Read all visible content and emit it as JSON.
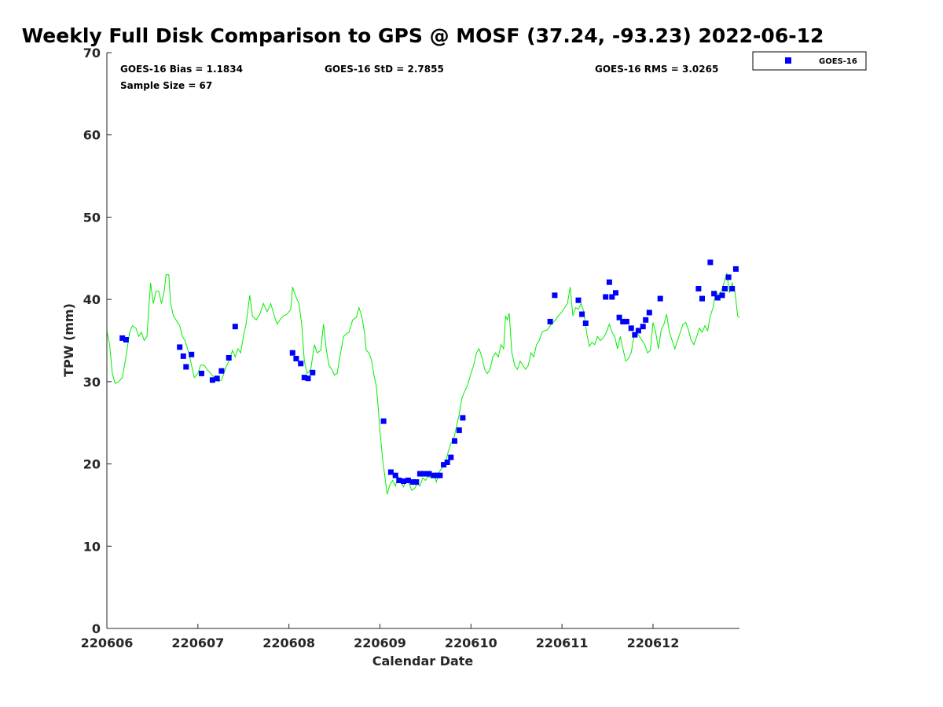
{
  "chart_data": {
    "type": "scatter",
    "title": "Weekly Full Disk Comparison to GPS @ MOSF (37.24, -93.23) 2022-06-12",
    "xlabel": "Calendar Date",
    "ylabel": "TPW (mm)",
    "xlim": [
      0,
      6.95
    ],
    "ylim": [
      0,
      70
    ],
    "x_ticks": [
      {
        "value": 0,
        "label": "220606"
      },
      {
        "value": 1,
        "label": "220607"
      },
      {
        "value": 2,
        "label": "220608"
      },
      {
        "value": 3,
        "label": "220609"
      },
      {
        "value": 4,
        "label": "220610"
      },
      {
        "value": 5,
        "label": "220611"
      },
      {
        "value": 6,
        "label": "220612"
      }
    ],
    "y_ticks": [
      0,
      10,
      20,
      30,
      40,
      50,
      60,
      70
    ],
    "grid": false,
    "legend_position": "top-right outside",
    "stats": {
      "bias": "GOES-16 Bias = 1.1834",
      "std": "GOES-16 StD = 2.7855",
      "rms": "GOES-16 RMS = 3.0265",
      "sample": "Sample Size = 67"
    },
    "series": [
      {
        "name": "GOES-16",
        "kind": "scatter",
        "marker": "square",
        "color": "#0000ff",
        "points": [
          [
            0.17,
            35.3
          ],
          [
            0.21,
            35.1
          ],
          [
            0.8,
            34.2
          ],
          [
            0.84,
            33.1
          ],
          [
            0.87,
            31.8
          ],
          [
            0.93,
            33.3
          ],
          [
            1.04,
            31.0
          ],
          [
            1.16,
            30.2
          ],
          [
            1.21,
            30.4
          ],
          [
            1.26,
            31.3
          ],
          [
            1.34,
            32.9
          ],
          [
            1.41,
            36.7
          ],
          [
            2.04,
            33.5
          ],
          [
            2.08,
            32.8
          ],
          [
            2.13,
            32.2
          ],
          [
            2.17,
            30.5
          ],
          [
            2.21,
            30.4
          ],
          [
            2.26,
            31.1
          ],
          [
            3.04,
            25.2
          ],
          [
            3.12,
            19.0
          ],
          [
            3.17,
            18.6
          ],
          [
            3.21,
            18.0
          ],
          [
            3.26,
            17.9
          ],
          [
            3.31,
            18.0
          ],
          [
            3.36,
            17.8
          ],
          [
            3.4,
            17.8
          ],
          [
            3.44,
            18.8
          ],
          [
            3.49,
            18.8
          ],
          [
            3.54,
            18.8
          ],
          [
            3.59,
            18.6
          ],
          [
            3.63,
            18.6
          ],
          [
            3.66,
            18.6
          ],
          [
            3.7,
            19.9
          ],
          [
            3.74,
            20.2
          ],
          [
            3.78,
            20.8
          ],
          [
            3.82,
            22.8
          ],
          [
            3.87,
            24.1
          ],
          [
            3.91,
            25.6
          ],
          [
            4.87,
            37.3
          ],
          [
            4.92,
            40.5
          ],
          [
            5.18,
            39.9
          ],
          [
            5.22,
            38.2
          ],
          [
            5.26,
            37.1
          ],
          [
            5.48,
            40.3
          ],
          [
            5.52,
            42.1
          ],
          [
            5.55,
            40.3
          ],
          [
            5.59,
            40.8
          ],
          [
            5.63,
            37.8
          ],
          [
            5.67,
            37.3
          ],
          [
            5.71,
            37.3
          ],
          [
            5.76,
            36.5
          ],
          [
            5.8,
            35.7
          ],
          [
            5.84,
            36.2
          ],
          [
            5.89,
            36.7
          ],
          [
            5.92,
            37.5
          ],
          [
            5.96,
            38.4
          ],
          [
            6.08,
            40.1
          ],
          [
            6.5,
            41.3
          ],
          [
            6.54,
            40.1
          ],
          [
            6.63,
            44.5
          ],
          [
            6.67,
            40.7
          ],
          [
            6.71,
            40.2
          ],
          [
            6.76,
            40.5
          ],
          [
            6.79,
            41.3
          ],
          [
            6.83,
            42.7
          ],
          [
            6.87,
            41.3
          ],
          [
            6.91,
            43.7
          ]
        ]
      },
      {
        "name": "GPS",
        "kind": "line",
        "color": "#00ee00",
        "points": [
          [
            0.0,
            36.2
          ],
          [
            0.03,
            34.5
          ],
          [
            0.06,
            31.0
          ],
          [
            0.09,
            29.8
          ],
          [
            0.13,
            30.0
          ],
          [
            0.17,
            30.5
          ],
          [
            0.21,
            33.0
          ],
          [
            0.25,
            36.0
          ],
          [
            0.28,
            36.8
          ],
          [
            0.32,
            36.5
          ],
          [
            0.35,
            35.5
          ],
          [
            0.38,
            36.0
          ],
          [
            0.41,
            35.0
          ],
          [
            0.44,
            35.5
          ],
          [
            0.48,
            42.0
          ],
          [
            0.51,
            39.5
          ],
          [
            0.54,
            41.0
          ],
          [
            0.57,
            41.0
          ],
          [
            0.6,
            39.5
          ],
          [
            0.63,
            41.0
          ],
          [
            0.65,
            43.0
          ],
          [
            0.68,
            43.0
          ],
          [
            0.7,
            39.5
          ],
          [
            0.73,
            38.0
          ],
          [
            0.76,
            37.5
          ],
          [
            0.8,
            36.8
          ],
          [
            0.83,
            35.5
          ],
          [
            0.86,
            35.0
          ],
          [
            0.9,
            33.5
          ],
          [
            0.93,
            32.0
          ],
          [
            0.96,
            30.5
          ],
          [
            1.0,
            31.0
          ],
          [
            1.03,
            32.0
          ],
          [
            1.07,
            32.0
          ],
          [
            1.1,
            31.5
          ],
          [
            1.14,
            31.0
          ],
          [
            1.18,
            30.5
          ],
          [
            1.22,
            30.0
          ],
          [
            1.26,
            30.2
          ],
          [
            1.3,
            31.5
          ],
          [
            1.34,
            32.5
          ],
          [
            1.38,
            33.8
          ],
          [
            1.41,
            33.0
          ],
          [
            1.44,
            34.0
          ],
          [
            1.47,
            33.5
          ],
          [
            1.5,
            35.5
          ],
          [
            1.53,
            37.0
          ],
          [
            1.57,
            40.5
          ],
          [
            1.6,
            38.0
          ],
          [
            1.64,
            37.5
          ],
          [
            1.68,
            38.2
          ],
          [
            1.72,
            39.5
          ],
          [
            1.76,
            38.5
          ],
          [
            1.8,
            39.5
          ],
          [
            1.84,
            38.0
          ],
          [
            1.87,
            37.0
          ],
          [
            1.9,
            37.5
          ],
          [
            1.94,
            38.0
          ],
          [
            1.98,
            38.2
          ],
          [
            2.02,
            38.8
          ],
          [
            2.04,
            41.5
          ],
          [
            2.07,
            40.5
          ],
          [
            2.11,
            39.5
          ],
          [
            2.14,
            37.0
          ],
          [
            2.17,
            32.5
          ],
          [
            2.2,
            31.0
          ],
          [
            2.24,
            31.5
          ],
          [
            2.28,
            34.5
          ],
          [
            2.31,
            33.5
          ],
          [
            2.35,
            33.8
          ],
          [
            2.38,
            37.0
          ],
          [
            2.41,
            34.0
          ],
          [
            2.44,
            32.0
          ],
          [
            2.47,
            31.5
          ],
          [
            2.5,
            30.8
          ],
          [
            2.53,
            31.0
          ],
          [
            2.56,
            33.0
          ],
          [
            2.6,
            35.5
          ],
          [
            2.63,
            35.8
          ],
          [
            2.66,
            36.0
          ],
          [
            2.7,
            37.5
          ],
          [
            2.74,
            37.8
          ],
          [
            2.77,
            39.0
          ],
          [
            2.8,
            38.0
          ],
          [
            2.83,
            36.0
          ],
          [
            2.85,
            33.8
          ],
          [
            2.88,
            33.5
          ],
          [
            2.91,
            32.5
          ],
          [
            2.93,
            31.0
          ],
          [
            2.96,
            29.5
          ],
          [
            2.98,
            27.0
          ],
          [
            3.0,
            24.0
          ],
          [
            3.03,
            20.5
          ],
          [
            3.06,
            18.0
          ],
          [
            3.08,
            16.3
          ],
          [
            3.11,
            17.5
          ],
          [
            3.14,
            18.0
          ],
          [
            3.17,
            17.3
          ],
          [
            3.2,
            18.5
          ],
          [
            3.23,
            17.8
          ],
          [
            3.26,
            17.2
          ],
          [
            3.29,
            18.2
          ],
          [
            3.32,
            17.6
          ],
          [
            3.35,
            16.8
          ],
          [
            3.38,
            17.0
          ],
          [
            3.41,
            17.6
          ],
          [
            3.44,
            17.3
          ],
          [
            3.47,
            18.3
          ],
          [
            3.5,
            18.0
          ],
          [
            3.53,
            18.5
          ],
          [
            3.56,
            18.3
          ],
          [
            3.59,
            18.8
          ],
          [
            3.62,
            17.8
          ],
          [
            3.65,
            19.0
          ],
          [
            3.68,
            19.5
          ],
          [
            3.72,
            20.0
          ],
          [
            3.75,
            21.5
          ],
          [
            3.78,
            22.5
          ],
          [
            3.81,
            23.0
          ],
          [
            3.84,
            24.5
          ],
          [
            3.87,
            26.0
          ],
          [
            3.9,
            28.0
          ],
          [
            3.93,
            28.8
          ],
          [
            3.96,
            29.5
          ],
          [
            4.0,
            31.0
          ],
          [
            4.03,
            32.0
          ],
          [
            4.06,
            33.5
          ],
          [
            4.09,
            34.0
          ],
          [
            4.12,
            33.0
          ],
          [
            4.15,
            31.5
          ],
          [
            4.18,
            31.0
          ],
          [
            4.21,
            31.5
          ],
          [
            4.24,
            33.0
          ],
          [
            4.27,
            33.5
          ],
          [
            4.3,
            33.0
          ],
          [
            4.33,
            34.5
          ],
          [
            4.36,
            34.0
          ],
          [
            4.38,
            38.0
          ],
          [
            4.4,
            37.5
          ],
          [
            4.42,
            38.3
          ],
          [
            4.45,
            33.5
          ],
          [
            4.48,
            32.0
          ],
          [
            4.51,
            31.5
          ],
          [
            4.54,
            32.5
          ],
          [
            4.57,
            32.0
          ],
          [
            4.6,
            31.5
          ],
          [
            4.63,
            32.0
          ],
          [
            4.66,
            33.5
          ],
          [
            4.69,
            33.0
          ],
          [
            4.72,
            34.5
          ],
          [
            4.75,
            35.0
          ],
          [
            4.78,
            36.0
          ],
          [
            4.81,
            36.2
          ],
          [
            4.84,
            36.3
          ],
          [
            4.87,
            36.8
          ],
          [
            4.9,
            37.2
          ],
          [
            4.93,
            37.5
          ],
          [
            4.96,
            38.0
          ],
          [
            5.0,
            38.5
          ],
          [
            5.03,
            39.0
          ],
          [
            5.06,
            39.5
          ],
          [
            5.09,
            41.5
          ],
          [
            5.12,
            38.0
          ],
          [
            5.15,
            39.0
          ],
          [
            5.18,
            38.8
          ],
          [
            5.21,
            39.5
          ],
          [
            5.24,
            38.5
          ],
          [
            5.27,
            36.0
          ],
          [
            5.3,
            34.3
          ],
          [
            5.33,
            34.8
          ],
          [
            5.36,
            34.5
          ],
          [
            5.39,
            35.5
          ],
          [
            5.42,
            35.0
          ],
          [
            5.45,
            35.3
          ],
          [
            5.48,
            35.8
          ],
          [
            5.52,
            37.0
          ],
          [
            5.55,
            36.0
          ],
          [
            5.58,
            35.5
          ],
          [
            5.61,
            34.0
          ],
          [
            5.64,
            35.5
          ],
          [
            5.67,
            34.0
          ],
          [
            5.7,
            32.5
          ],
          [
            5.73,
            32.8
          ],
          [
            5.76,
            33.5
          ],
          [
            5.79,
            35.5
          ],
          [
            5.82,
            36.0
          ],
          [
            5.85,
            35.5
          ],
          [
            5.88,
            35.0
          ],
          [
            5.91,
            34.5
          ],
          [
            5.94,
            33.5
          ],
          [
            5.97,
            33.8
          ],
          [
            6.0,
            37.2
          ],
          [
            6.03,
            36.0
          ],
          [
            6.06,
            34.0
          ],
          [
            6.09,
            36.3
          ],
          [
            6.12,
            37.0
          ],
          [
            6.15,
            38.2
          ],
          [
            6.18,
            36.0
          ],
          [
            6.21,
            35.0
          ],
          [
            6.24,
            34.0
          ],
          [
            6.27,
            35.0
          ],
          [
            6.3,
            36.0
          ],
          [
            6.33,
            37.0
          ],
          [
            6.36,
            37.2
          ],
          [
            6.39,
            36.3
          ],
          [
            6.42,
            35.0
          ],
          [
            6.45,
            34.5
          ],
          [
            6.48,
            35.5
          ],
          [
            6.51,
            36.5
          ],
          [
            6.54,
            36.0
          ],
          [
            6.57,
            36.8
          ],
          [
            6.6,
            36.2
          ],
          [
            6.63,
            38.0
          ],
          [
            6.66,
            39.0
          ],
          [
            6.69,
            41.0
          ],
          [
            6.72,
            40.5
          ],
          [
            6.75,
            41.0
          ],
          [
            6.78,
            42.0
          ],
          [
            6.81,
            43.2
          ],
          [
            6.84,
            40.8
          ],
          [
            6.87,
            42.0
          ],
          [
            6.9,
            41.0
          ],
          [
            6.93,
            38.0
          ],
          [
            6.95,
            37.8
          ]
        ]
      }
    ]
  }
}
